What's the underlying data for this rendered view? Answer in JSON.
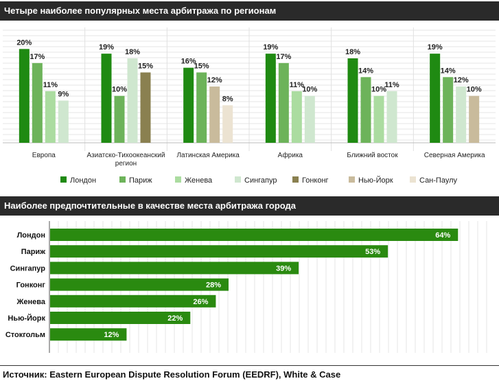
{
  "chart_data": [
    {
      "type": "bar",
      "title": "Четыре наиболее популярных места арбитража по регионам",
      "categories": [
        "Европа",
        "Азиатско-Тихоокеанский регион",
        "Латинская Америка",
        "Африка",
        "Ближний восток",
        "Северная Америка"
      ],
      "category_lines": [
        [
          "Европа"
        ],
        [
          "Азиатско-Тихоокеанский",
          "регион"
        ],
        [
          "Латинская Америка"
        ],
        [
          "Африка"
        ],
        [
          "Ближний восток"
        ],
        [
          "Северная Америка"
        ]
      ],
      "legend_position": "bottom",
      "series_legend": [
        {
          "name": "Лондон",
          "color": "#1f8a12"
        },
        {
          "name": "Париж",
          "color": "#6db35a"
        },
        {
          "name": "Женева",
          "color": "#abdca0"
        },
        {
          "name": "Сингапур",
          "color": "#cfe7cf"
        },
        {
          "name": "Гонконг",
          "color": "#8a8050"
        },
        {
          "name": "Нью-Йорк",
          "color": "#c9bb9c"
        },
        {
          "name": "Сан-Паулу",
          "color": "#ece3d2"
        }
      ],
      "groups": [
        {
          "category": "Европа",
          "bars": [
            {
              "series": "Лондон",
              "value": 20,
              "label": "20%"
            },
            {
              "series": "Париж",
              "value": 17,
              "label": "17%"
            },
            {
              "series": "Женева",
              "value": 11,
              "label": "11%"
            },
            {
              "series": "Сингапур",
              "value": 9,
              "label": "9%"
            }
          ]
        },
        {
          "category": "Азиатско-Тихоокеанский регион",
          "bars": [
            {
              "series": "Лондон",
              "value": 19,
              "label": "19%"
            },
            {
              "series": "Париж",
              "value": 10,
              "label": "10%"
            },
            {
              "series": "Сингапур",
              "value": 18,
              "label": "18%"
            },
            {
              "series": "Гонконг",
              "value": 15,
              "label": "15%"
            }
          ]
        },
        {
          "category": "Латинская Америка",
          "bars": [
            {
              "series": "Лондон",
              "value": 16,
              "label": "16%"
            },
            {
              "series": "Париж",
              "value": 15,
              "label": "15%"
            },
            {
              "series": "Нью-Йорк",
              "value": 12,
              "label": "12%"
            },
            {
              "series": "Сан-Паулу",
              "value": 8,
              "label": "8%"
            }
          ]
        },
        {
          "category": "Африка",
          "bars": [
            {
              "series": "Лондон",
              "value": 19,
              "label": "19%"
            },
            {
              "series": "Париж",
              "value": 17,
              "label": "17%"
            },
            {
              "series": "Женева",
              "value": 11,
              "label": "11%"
            },
            {
              "series": "Сингапур",
              "value": 10,
              "label": "10%"
            }
          ]
        },
        {
          "category": "Ближний восток",
          "bars": [
            {
              "series": "Лондон",
              "value": 18,
              "label": "18%"
            },
            {
              "series": "Париж",
              "value": 14,
              "label": "14%"
            },
            {
              "series": "Женева",
              "value": 10,
              "label": "10%"
            },
            {
              "series": "Сингапур",
              "value": 11,
              "label": "11%"
            }
          ]
        },
        {
          "category": "Северная Америка",
          "bars": [
            {
              "series": "Лондон",
              "value": 19,
              "label": "19%"
            },
            {
              "series": "Париж",
              "value": 14,
              "label": "14%"
            },
            {
              "series": "Сингапур",
              "value": 12,
              "label": "12%"
            },
            {
              "series": "Нью-Йорк",
              "value": 10,
              "label": "10%"
            }
          ]
        }
      ],
      "ylim": [
        0,
        24
      ]
    },
    {
      "type": "bar",
      "orientation": "horizontal",
      "title": "Наиболее предпочтительные  в качестве места арбитража города",
      "categories": [
        "Лондон",
        "Париж",
        "Сингапур",
        "Гонконг",
        "Женева",
        "Нью-Йорк",
        "Стокгольм"
      ],
      "values": [
        64,
        53,
        39,
        28,
        26,
        22,
        12
      ],
      "labels": [
        "64%",
        "53%",
        "39%",
        "28%",
        "26%",
        "22%",
        "12%"
      ],
      "color": "#2a8a10",
      "xlim": [
        0,
        70
      ]
    }
  ],
  "source": "Источник: Eastern European Dispute Resolution Forum (EEDRF), White & Case"
}
